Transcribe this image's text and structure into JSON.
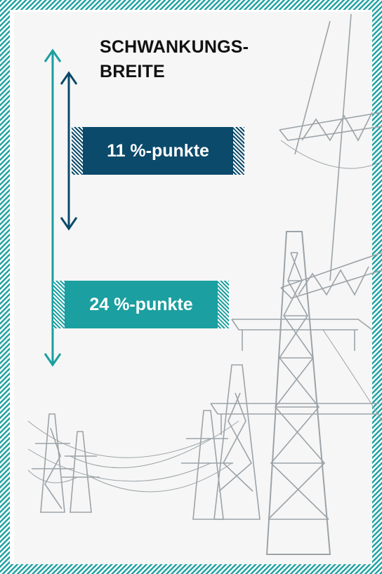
{
  "title": {
    "line1": "SCHWANKUNGS-",
    "line2": "BREITE"
  },
  "badges": {
    "small": "11 %-punkte",
    "large": "24 %-punkte"
  },
  "colors": {
    "dark_blue": "#0b4a6a",
    "teal": "#1b9fa0",
    "border_hatch": "#1b9fa0",
    "pylon_gray": "#9aa0a6"
  },
  "icons": {
    "arrow_short": "double-headed-arrow-icon",
    "arrow_long": "double-headed-arrow-icon",
    "illustration": "power-pylon-icon"
  }
}
